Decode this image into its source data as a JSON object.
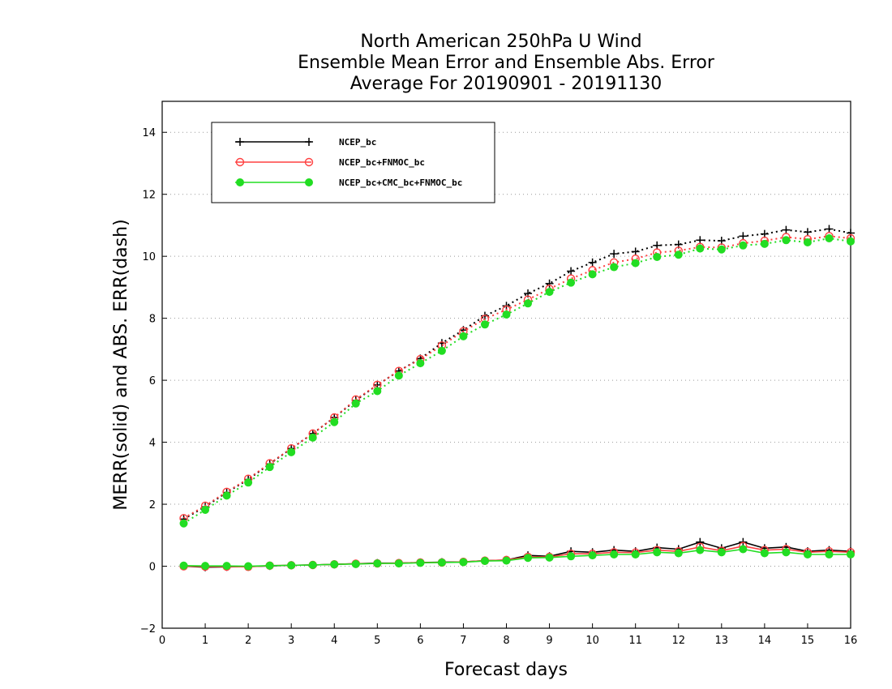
{
  "chart_data": {
    "type": "line",
    "title": [
      "North American 250hPa U Wind",
      "Ensemble Mean Error and Ensemble Abs. Error",
      "Average For 20190901 - 20191130"
    ],
    "xlabel": "Forecast days",
    "ylabel": "MERR(solid) and ABS. ERR(dash)",
    "xlim": [
      0,
      16
    ],
    "ylim": [
      -2,
      15
    ],
    "xticks": [
      0,
      1,
      2,
      3,
      4,
      5,
      6,
      7,
      8,
      9,
      10,
      11,
      12,
      13,
      14,
      15,
      16
    ],
    "yticks": [
      -2,
      0,
      2,
      4,
      6,
      8,
      10,
      12,
      14
    ],
    "grid": "dotted horizontal",
    "legend_position": "top-left",
    "x": [
      0.5,
      1,
      1.5,
      2,
      2.5,
      3,
      3.5,
      4,
      4.5,
      5,
      5.5,
      6,
      6.5,
      7,
      7.5,
      8,
      8.5,
      9,
      9.5,
      10,
      10.5,
      11,
      11.5,
      12,
      12.5,
      13,
      13.5,
      14,
      14.5,
      15,
      15.5,
      16
    ],
    "series": [
      {
        "name": "NCEP_bc",
        "color": "#000000",
        "marker": "plus",
        "merr": [
          0.0,
          -0.03,
          -0.02,
          -0.01,
          0.01,
          0.03,
          0.04,
          0.06,
          0.08,
          0.1,
          0.1,
          0.12,
          0.13,
          0.14,
          0.18,
          0.2,
          0.35,
          0.32,
          0.48,
          0.45,
          0.52,
          0.48,
          0.6,
          0.55,
          0.78,
          0.58,
          0.78,
          0.58,
          0.62,
          0.48,
          0.52,
          0.48
        ],
        "abs_err": [
          1.52,
          1.92,
          2.38,
          2.8,
          3.3,
          3.8,
          4.28,
          4.8,
          5.35,
          5.85,
          6.3,
          6.7,
          7.2,
          7.62,
          8.08,
          8.4,
          8.8,
          9.12,
          9.52,
          9.8,
          10.08,
          10.15,
          10.35,
          10.38,
          10.52,
          10.5,
          10.65,
          10.72,
          10.85,
          10.78,
          10.88,
          10.75
        ]
      },
      {
        "name": "NCEP_bc+FNMOC_bc",
        "color": "#ff4040",
        "marker": "open-circle",
        "merr": [
          0.0,
          -0.01,
          -0.01,
          -0.02,
          0.02,
          0.03,
          0.04,
          0.06,
          0.08,
          0.09,
          0.1,
          0.12,
          0.12,
          0.14,
          0.18,
          0.2,
          0.3,
          0.3,
          0.4,
          0.4,
          0.45,
          0.44,
          0.52,
          0.48,
          0.62,
          0.5,
          0.65,
          0.52,
          0.55,
          0.45,
          0.48,
          0.45
        ],
        "abs_err": [
          1.55,
          1.95,
          2.4,
          2.82,
          3.32,
          3.8,
          4.28,
          4.8,
          5.38,
          5.85,
          6.3,
          6.68,
          7.12,
          7.58,
          7.98,
          8.28,
          8.6,
          8.95,
          9.28,
          9.55,
          9.8,
          9.92,
          10.12,
          10.18,
          10.3,
          10.28,
          10.42,
          10.5,
          10.62,
          10.55,
          10.65,
          10.58
        ]
      },
      {
        "name": "NCEP_bc+CMC_bc+FNMOC_bc",
        "color": "#22dd22",
        "marker": "filled-circle",
        "merr": [
          0.02,
          0.01,
          0.01,
          0.0,
          0.02,
          0.03,
          0.04,
          0.06,
          0.07,
          0.09,
          0.09,
          0.11,
          0.12,
          0.13,
          0.17,
          0.18,
          0.27,
          0.28,
          0.32,
          0.35,
          0.38,
          0.38,
          0.45,
          0.42,
          0.52,
          0.45,
          0.55,
          0.42,
          0.45,
          0.38,
          0.38,
          0.38
        ],
        "abs_err": [
          1.38,
          1.82,
          2.28,
          2.7,
          3.2,
          3.68,
          4.15,
          4.65,
          5.25,
          5.65,
          6.15,
          6.55,
          6.95,
          7.42,
          7.8,
          8.12,
          8.48,
          8.85,
          9.15,
          9.42,
          9.65,
          9.78,
          9.98,
          10.05,
          10.25,
          10.22,
          10.35,
          10.4,
          10.52,
          10.45,
          10.58,
          10.48
        ]
      }
    ]
  }
}
